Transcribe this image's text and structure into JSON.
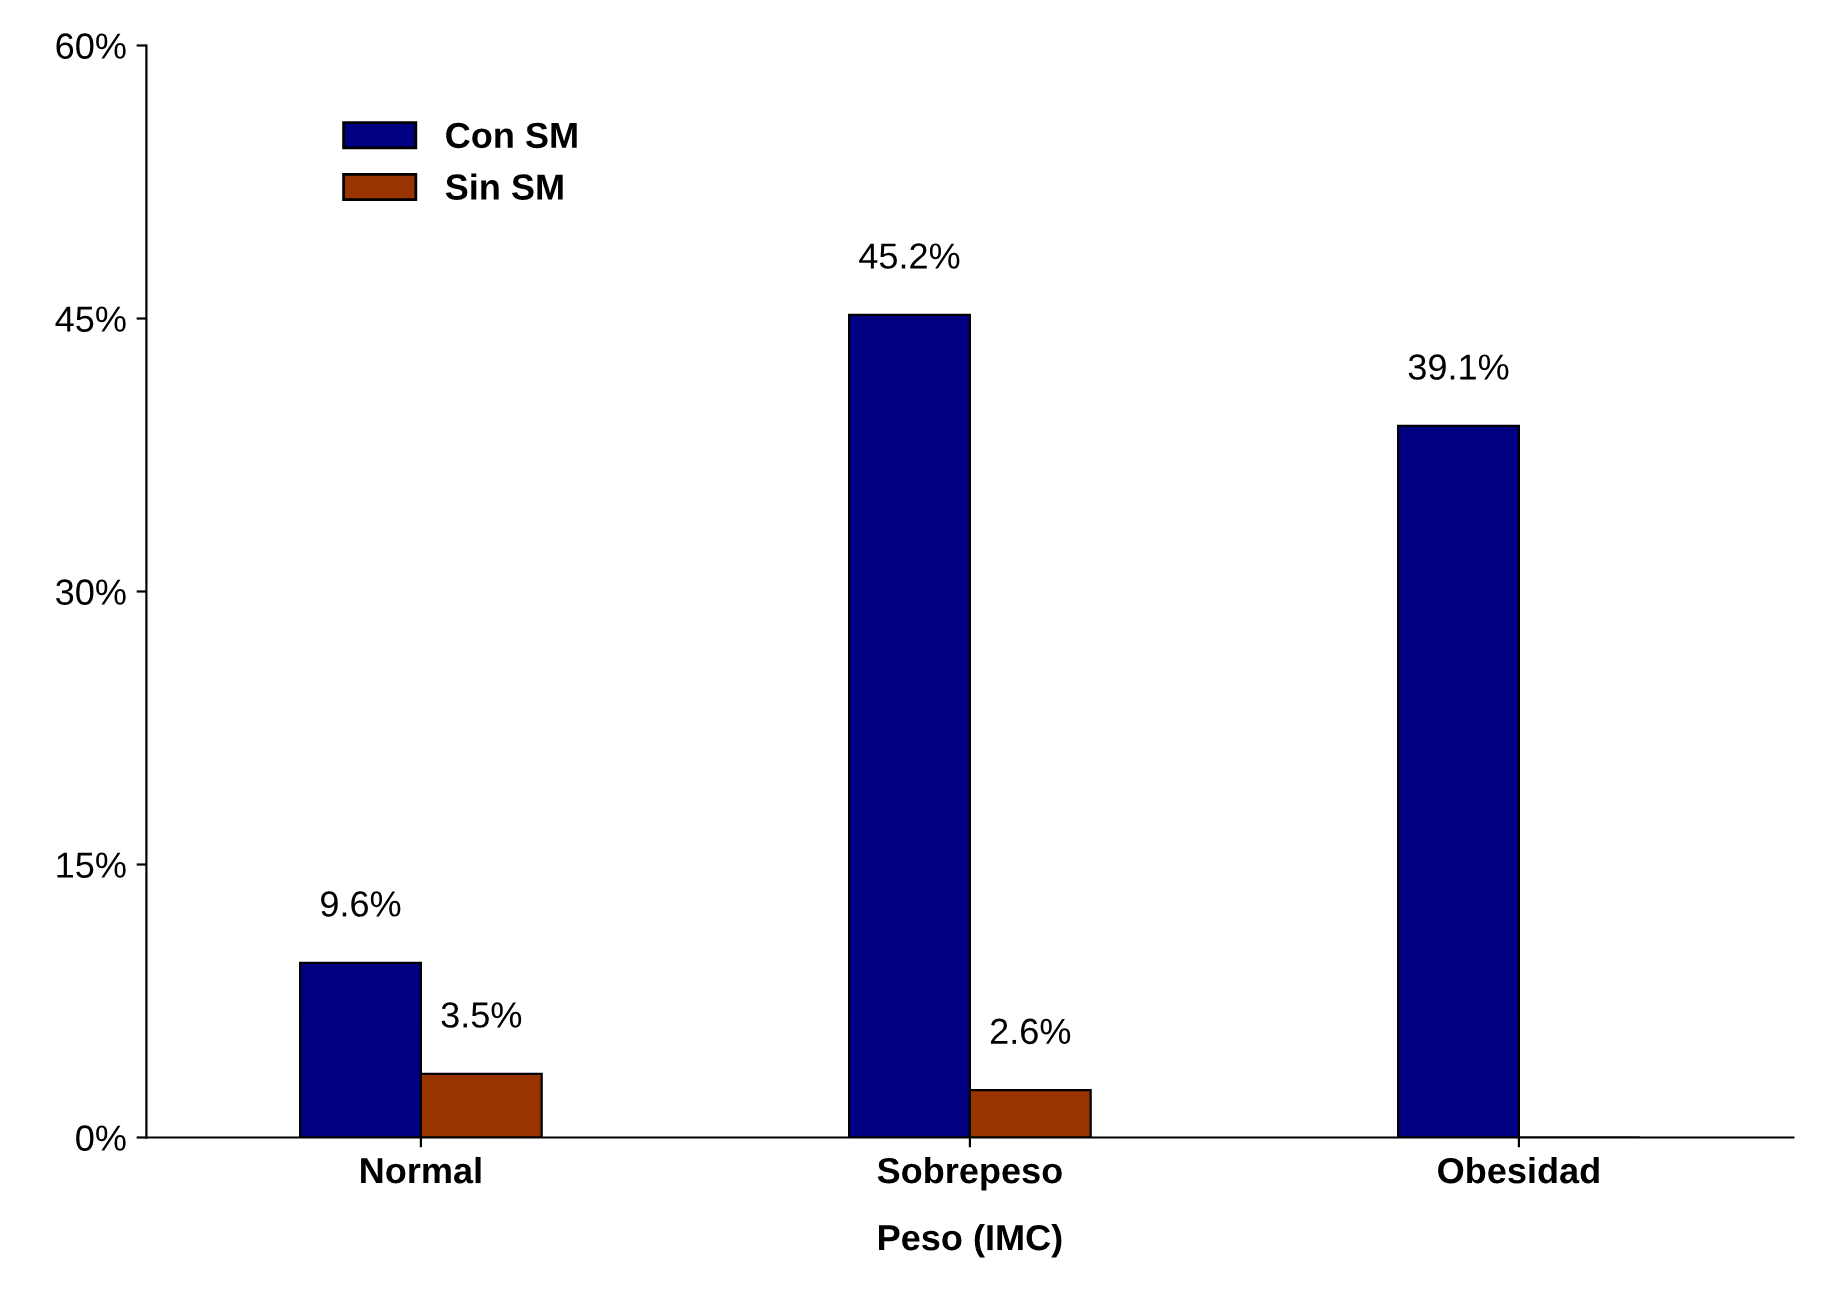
{
  "chart_data": {
    "type": "bar",
    "xlabel": "Peso (IMC)",
    "categories": [
      "Normal",
      "Sobrepeso",
      "Obesidad"
    ],
    "series": [
      {
        "name": "Con SM",
        "color": "#000080",
        "values": [
          9.6,
          45.2,
          39.1
        ],
        "value_labels": [
          "9.6%",
          "45.2%",
          "39.1%"
        ]
      },
      {
        "name": "Sin SM",
        "color": "#993300",
        "values": [
          3.5,
          2.6,
          0
        ],
        "value_labels": [
          "3.5%",
          "2.6%",
          null
        ]
      }
    ],
    "ylim": [
      0,
      60
    ],
    "yticks": [
      {
        "value": 0,
        "label": "0%"
      },
      {
        "value": 15,
        "label": "15%"
      },
      {
        "value": 30,
        "label": "30%"
      },
      {
        "value": 45,
        "label": "45%"
      },
      {
        "value": 60,
        "label": "60%"
      }
    ],
    "grid": false,
    "legend": "top left"
  }
}
